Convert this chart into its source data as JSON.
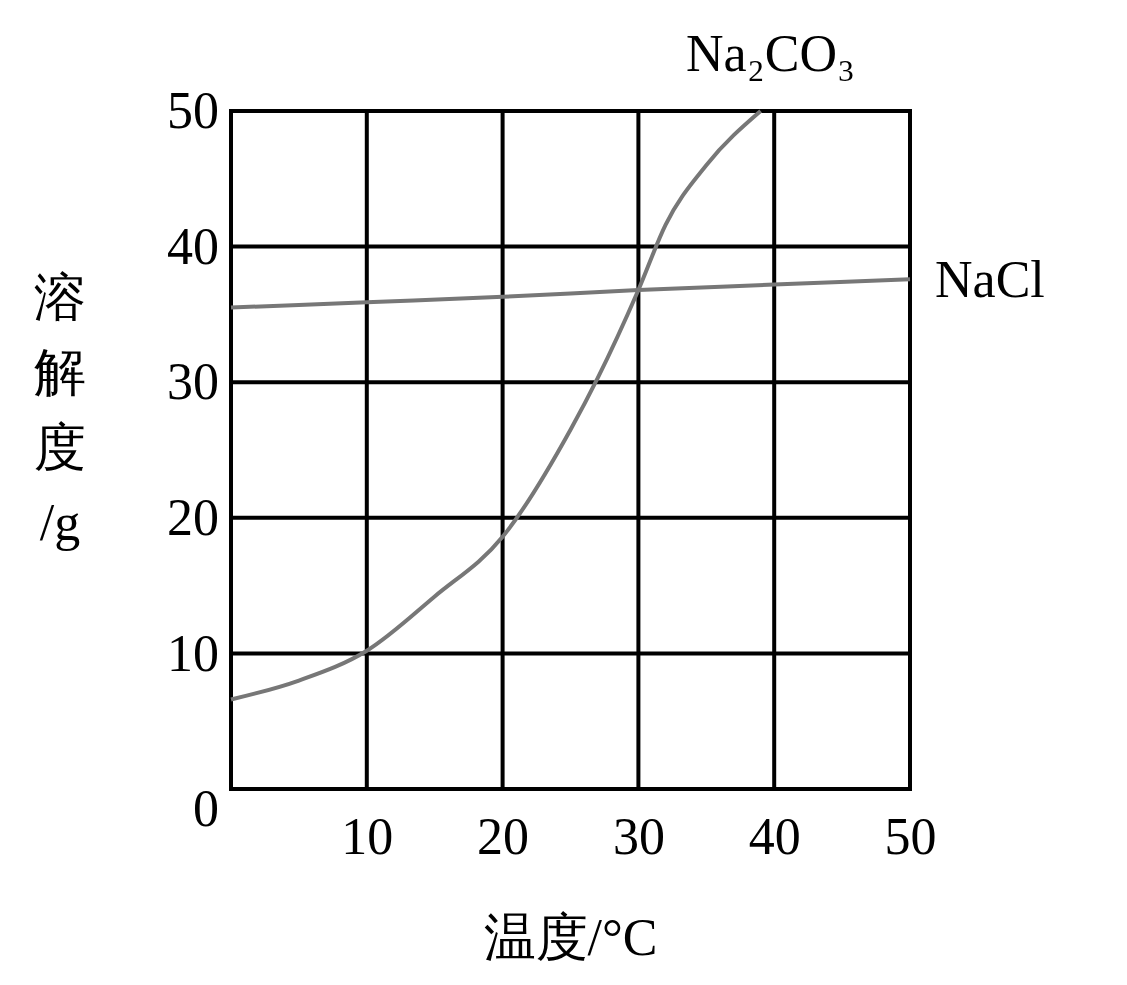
{
  "chart_data": {
    "type": "line",
    "xlabel": "温度/°C",
    "ylabel": "溶解度/g",
    "xlim": [
      0,
      50
    ],
    "ylim": [
      0,
      50
    ],
    "xticks": [
      {
        "value": 0,
        "label": null
      },
      10,
      20,
      30,
      40,
      50
    ],
    "yticks": [
      0,
      10,
      20,
      30,
      40,
      50
    ],
    "grid": true,
    "marker": "none",
    "line_style": "solid",
    "series": [
      {
        "name": "Na₂CO₃",
        "color": "#777777",
        "x": [
          0,
          5,
          10,
          15,
          20,
          25,
          27,
          30,
          32,
          35,
          39
        ],
        "values": [
          6.6,
          8,
          10.2,
          14.2,
          18.6,
          26.5,
          30.3,
          36.8,
          41.6,
          46,
          50
        ]
      },
      {
        "name": "NaCl",
        "color": "#777777",
        "x": [
          0,
          10,
          20,
          30,
          40,
          50
        ],
        "values": [
          35.5,
          35.9,
          36.3,
          36.8,
          37.2,
          37.6
        ]
      }
    ]
  }
}
